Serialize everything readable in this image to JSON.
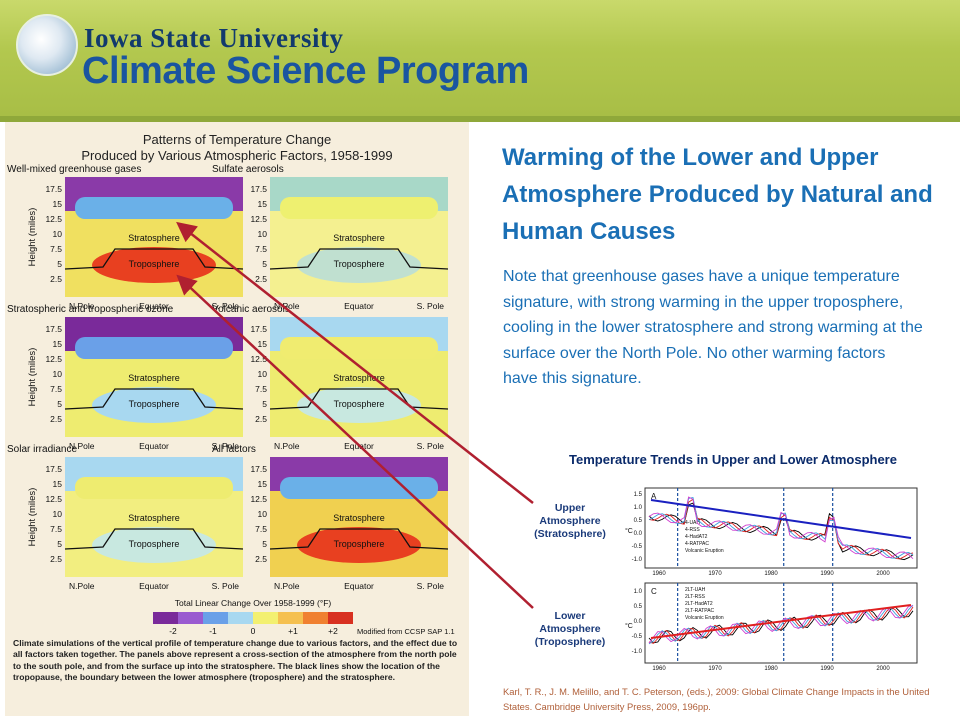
{
  "header": {
    "university": "Iowa State University",
    "program": "Climate Science Program"
  },
  "figure": {
    "title_line1": "Patterns of Temperature Change",
    "title_line2": "Produced by Various Atmospheric Factors, 1958-1999",
    "panels": [
      {
        "title": "Well-mixed greenhouse gases",
        "upper": "Stratosphere",
        "lower": "Troposphere"
      },
      {
        "title": "Sulfate aerosols",
        "upper": "Stratosphere",
        "lower": "Troposphere"
      },
      {
        "title": "Stratospheric and tropospheric ozone",
        "upper": "Stratosphere",
        "lower": "Troposphere"
      },
      {
        "title": "Volcanic aerosols",
        "upper": "Stratosphere",
        "lower": "Troposphere"
      },
      {
        "title": "Solar irradiance",
        "upper": "Stratosphere",
        "lower": "Troposphere"
      },
      {
        "title": "All factors",
        "upper": "Stratosphere",
        "lower": "Troposphere"
      }
    ],
    "y_ticks": [
      "17.5",
      "15",
      "12.5",
      "10",
      "7.5",
      "5",
      "2.5"
    ],
    "y_label": "Height (miles)",
    "x_ticks": [
      "N.Pole",
      "Equator",
      "S. Pole"
    ],
    "colorbar_label": "Total Linear Change Over 1958-1999 (°F)",
    "colorbar_ticks": [
      "-2",
      "-1",
      "0",
      "+1",
      "+2"
    ],
    "colorbar_colors": [
      "#7a2a9a",
      "#9a5ad0",
      "#6aa0e8",
      "#a8d8f0",
      "#f3f070",
      "#f5c050",
      "#f08030",
      "#d83020"
    ],
    "modified_from": "Modified from CCSP SAP 1.1",
    "caption": "Climate simulations of the vertical profile of temperature change due to various factors, and the effect due to all factors taken together. The panels above represent a cross-section of the atmosphere from the north pole to the south pole, and from the surface up into the stratosphere. The black lines show the location of the tropopause, the boundary between the lower atmosphere (troposphere) and the stratosphere."
  },
  "slide": {
    "title": "Warming of the Lower and Upper Atmosphere Produced by Natural and Human Causes",
    "body": "Note that greenhouse gases have a unique temperature signature, with strong warming in the upper troposphere, cooling in the lower stratosphere and strong warming at the surface over the North Pole. No other warming factors have this signature."
  },
  "trends": {
    "title": "Temperature Trends in Upper and Lower Atmosphere",
    "upper_label_1": "Upper",
    "upper_label_2": "Atmosphere",
    "upper_label_3": "(Stratosphere)",
    "lower_label_1": "Lower",
    "lower_label_2": "Atmosphere",
    "lower_label_3": "(Troposphere)",
    "panel_a": "A",
    "panel_c": "C",
    "upper_yticks": [
      "1.5",
      "1.0",
      "0.5",
      "0.0",
      "-0.5",
      "-1.0"
    ],
    "lower_yticks": [
      "1.0",
      "0.5",
      "0.0",
      "-0.5",
      "-1.0"
    ],
    "xticks": [
      "1960",
      "1970",
      "1980",
      "1990",
      "2000"
    ],
    "upper_legend": [
      "4-UAH",
      "4-RSS",
      "4-HadAT2",
      "4-RATPAC",
      "Volcanic Eruption"
    ],
    "lower_legend": [
      "2LT-UAH",
      "2LT-RSS",
      "2LT-HadAT2",
      "2LT-RATPAC",
      "Volcanic Eruption"
    ],
    "y_unit": "°C"
  },
  "citation": "Karl, T. R., J. M. Melillo, and T. C. Peterson, (eds.), 2009: Global Climate Change Impacts in the United States. Cambridge University Press, 2009, 196pp."
}
